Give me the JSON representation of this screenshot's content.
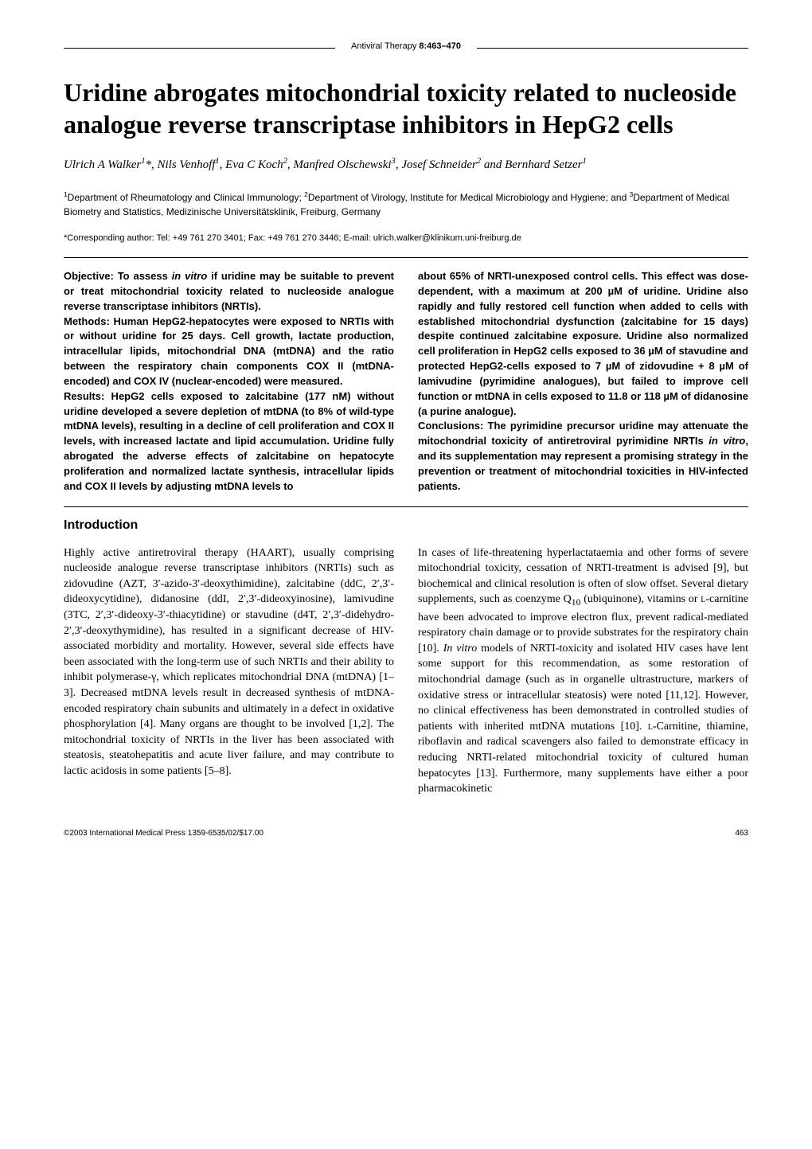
{
  "journal": {
    "name": "Antiviral Therapy",
    "volume_pages": "8:463–470"
  },
  "title": "Uridine abrogates mitochondrial toxicity related to nucleoside analogue reverse transcriptase inhibitors in HepG2 cells",
  "authors_html": "Ulrich A Walker<sup>1</sup>*, Nils Venhoff<sup>1</sup>, Eva C Koch<sup>2</sup>, Manfred Olschewski<sup>3</sup>, Josef Schneider<sup>2</sup> and Bernhard Setzer<sup>1</sup>",
  "affiliations_html": "<sup>1</sup>Department of Rheumatology and Clinical Immunology; <sup>2</sup>Department of Virology, Institute for Medical Microbiology and Hygiene; and <sup>3</sup>Department of Medical Biometry and Statistics, Medizinische Universitätsklinik, Freiburg, Germany",
  "corresponding": "*Corresponding author: Tel: +49 761 270 3401; Fax: +49 761 270 3446; E-mail: ulrich.walker@klinikum.uni-freiburg.de",
  "abstract": {
    "left_html": "<b>Objective: To assess <i>in vitro</i> if uridine may be suitable to prevent or treat mitochondrial toxicity related to nucleoside analogue reverse transcriptase inhibitors (NRTIs).</b><br><b>Methods: Human HepG2-hepatocytes were exposed to NRTIs with or without uridine for 25 days. Cell growth, lactate production, intracellular lipids, mitochondrial DNA (mtDNA) and the ratio between the respiratory chain components COX II (mtDNA-encoded) and COX IV (nuclear-encoded) were measured.</b><br><b>Results: HepG2 cells exposed to zalcitabine (177 nM) without uridine developed a severe depletion of mtDNA (to 8% of wild-type mtDNA levels), resulting in a decline of cell proliferation and COX II levels, with increased lactate and lipid accumulation. Uridine fully abrogated the adverse effects of zalcitabine on hepatocyte proliferation and normalized lactate synthesis, intracellular lipids and COX II levels by adjusting mtDNA levels to</b>",
    "right_html": "<b>about 65% of NRTI-unexposed control cells. This effect was dose-dependent, with a maximum at 200 µM of uridine. Uridine also rapidly and fully restored cell function when added to cells with established mitochondrial dysfunction (zalcitabine for 15 days) despite continued zalcitabine exposure. Uridine also normalized cell proliferation in HepG2 cells exposed to 36 µM of stavudine and protected HepG2-cells exposed to 7 µM of zidovudine + 8 µM of lamivudine (pyrimidine analogues), but failed to improve cell function or mtDNA in cells exposed to 11.8 or 118 µM of didanosine (a purine analogue).</b><br><b>Conclusions: The pyrimidine precursor uridine may attenuate the mitochondrial toxicity of antiretroviral pyrimidine NRTIs <i>in vitro</i>, and its supplementation may represent a promising strategy in the prevention or treatment of mitochondrial toxicities in HIV-infected patients.</b>"
  },
  "section_heading": "Introduction",
  "body": {
    "left": "Highly active antiretroviral therapy (HAART), usually comprising nucleoside analogue reverse transcriptase inhibitors (NRTIs) such as zidovudine (AZT, 3′-azido-3′-deoxythimidine), zalcitabine (ddC, 2′,3′-dideoxycytidine), didanosine (ddI, 2′,3′-dideoxyinosine), lamivudine (3TC, 2′,3′-dideoxy-3′-thiacytidine) or stavudine (d4T, 2′,3′-didehydro-2′,3′-deoxythymidine), has resulted in a significant decrease of HIV-associated morbidity and mortality. However, several side effects have been associated with the long-term use of such NRTIs and their ability to inhibit polymerase-γ, which replicates mitochondrial DNA (mtDNA) [1–3]. Decreased mtDNA levels result in decreased synthesis of mtDNA-encoded respiratory chain subunits and ultimately in a defect in oxidative phosphorylation [4]. Many organs are thought to be involved [1,2]. The mitochondrial toxicity of NRTIs in the liver has been associated with steatosis, steatohepatitis and acute liver failure, and may contribute to lactic acidosis in some patients [5–8].",
    "right_html": "In cases of life-threatening hyperlactataemia and other forms of severe mitochondrial toxicity, cessation of NRTI-treatment is advised [9], but biochemical and clinical resolution is often of slow offset. Several dietary supplements, such as coenzyme Q<sub>10</sub> (ubiquinone), vitamins or <span style='font-variant:small-caps'>l</span>-carnitine have been advocated to improve electron flux, prevent radical-mediated respiratory chain damage or to provide substrates for the respiratory chain [10]. <i>In vitro</i> models of NRTI-toxicity and isolated HIV cases have lent some support for this recommendation, as some restoration of mitochondrial damage (such as in organelle ultrastructure, markers of oxidative stress or intracellular steatosis) were noted [11,12]. However, no clinical effectiveness has been demonstrated in controlled studies of patients with inherited mtDNA mutations [10]. <span style='font-variant:small-caps'>l</span>-Carnitine, thiamine, riboflavin and radical scavengers also failed to demonstrate efficacy in reducing NRTI-related mitochondrial toxicity of cultured human hepatocytes [13]. Furthermore, many supplements have either a poor pharmacokinetic"
  },
  "footer": {
    "copyright": "©2003 International Medical Press 1359-6535/02/$17.00",
    "page_number": "463"
  },
  "colors": {
    "text": "#000000",
    "background": "#ffffff",
    "rule": "#000000"
  }
}
